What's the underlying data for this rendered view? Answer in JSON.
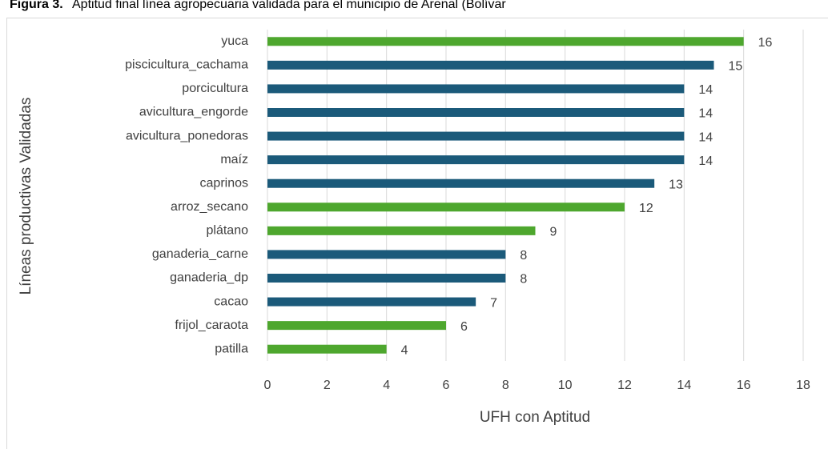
{
  "chart_data": {
    "type": "bar",
    "orientation": "horizontal",
    "title_prefix": "Figura 3.",
    "title": "Aptitud final línea agropecuaria validada para el municipio de Arenal (Bolívar",
    "x_label": "UFH con Aptitud",
    "y_label": "Líneas productivas Validadas",
    "categories": [
      "yuca",
      "piscicultura_cachama",
      "porcicultura",
      "avicultura_engorde",
      "avicultura_ponedoras",
      "maíz",
      "caprinos",
      "arroz_secano",
      "plátano",
      "ganaderia_carne",
      "ganaderia_dp",
      "cacao",
      "frijol_caraota",
      "patilla"
    ],
    "values": [
      16,
      15,
      14,
      14,
      14,
      14,
      13,
      12,
      9,
      8,
      8,
      7,
      6,
      4
    ],
    "colors": [
      "#4ea72e",
      "#1b5a7a",
      "#1b5a7a",
      "#1b5a7a",
      "#1b5a7a",
      "#1b5a7a",
      "#1b5a7a",
      "#4ea72e",
      "#4ea72e",
      "#1b5a7a",
      "#1b5a7a",
      "#1b5a7a",
      "#4ea72e",
      "#4ea72e"
    ],
    "xlim": [
      0,
      18
    ],
    "xticks": [
      0,
      2,
      4,
      6,
      8,
      10,
      12,
      14,
      16,
      18
    ],
    "grid": true
  }
}
